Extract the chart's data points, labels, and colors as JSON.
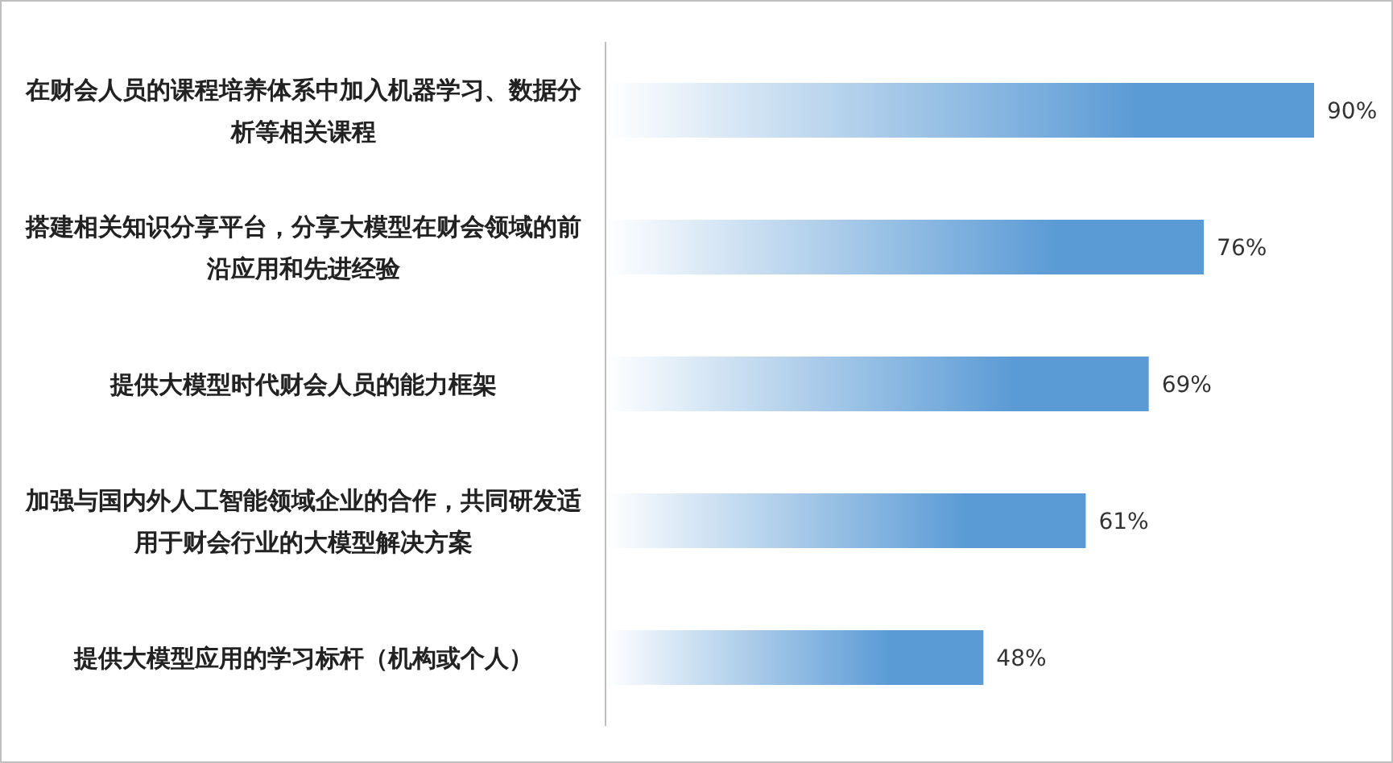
{
  "chart_data": {
    "type": "bar",
    "orientation": "horizontal",
    "categories": [
      "在财会人员的课程培养体系中加入机器学习、数据分析等相关课程",
      "搭建相关知识分享平台，分享大模型在财会领域的前沿应用和先进经验",
      "提供大模型时代财会人员的能力框架",
      "加强与国内外人工智能领域企业的合作，共同研发适用于财会行业的大模型解决方案",
      "提供大模型应用的学习标杆（机构或个人）"
    ],
    "values": [
      90,
      76,
      69,
      61,
      48
    ],
    "value_labels": [
      "90%",
      "76%",
      "69%",
      "61%",
      "48%"
    ],
    "color": "#5b9bd5"
  }
}
